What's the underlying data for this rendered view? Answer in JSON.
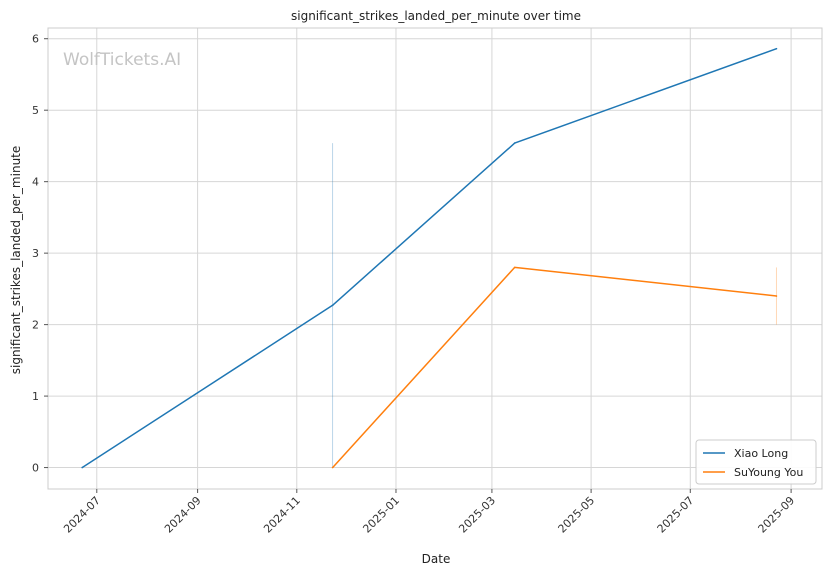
{
  "chart_data": {
    "type": "line",
    "title": "significant_strikes_landed_per_minute over time",
    "xlabel": "Date",
    "ylabel": "significant_strikes_landed_per_minute",
    "watermark": "WolfTickets.AI",
    "xlim": [
      "2024-06-01",
      "2025-09-20"
    ],
    "ylim": [
      -0.3,
      6.15
    ],
    "x_ticks": [
      "2024-07-01",
      "2024-09-01",
      "2024-11-01",
      "2025-01-01",
      "2025-03-01",
      "2025-05-01",
      "2025-07-01",
      "2025-09-01"
    ],
    "x_tick_labels": [
      "2024-07",
      "2024-09",
      "2024-11",
      "2025-01",
      "2025-03",
      "2025-05",
      "2025-07",
      "2025-09"
    ],
    "y_ticks": [
      0,
      1,
      2,
      3,
      4,
      5,
      6
    ],
    "y_tick_labels": [
      "0",
      "1",
      "2",
      "3",
      "4",
      "5",
      "6"
    ],
    "grid": true,
    "legend_position": "bottom-right",
    "series": [
      {
        "name": "Xiao Long",
        "color": "#1f77b4",
        "x": [
          "2024-06-22",
          "2024-11-23",
          "2025-03-15",
          "2025-08-23"
        ],
        "y": [
          0,
          2.27,
          4.54,
          5.86
        ],
        "band": {
          "x": "2024-11-23",
          "low": 0,
          "high": 4.54
        }
      },
      {
        "name": "SuYoung You",
        "color": "#ff7f0e",
        "x": [
          "2024-11-23",
          "2025-03-15",
          "2025-08-23"
        ],
        "y": [
          0,
          2.8,
          2.4
        ],
        "band": {
          "x": "2025-08-23",
          "low": 2.0,
          "high": 2.8
        }
      }
    ]
  }
}
